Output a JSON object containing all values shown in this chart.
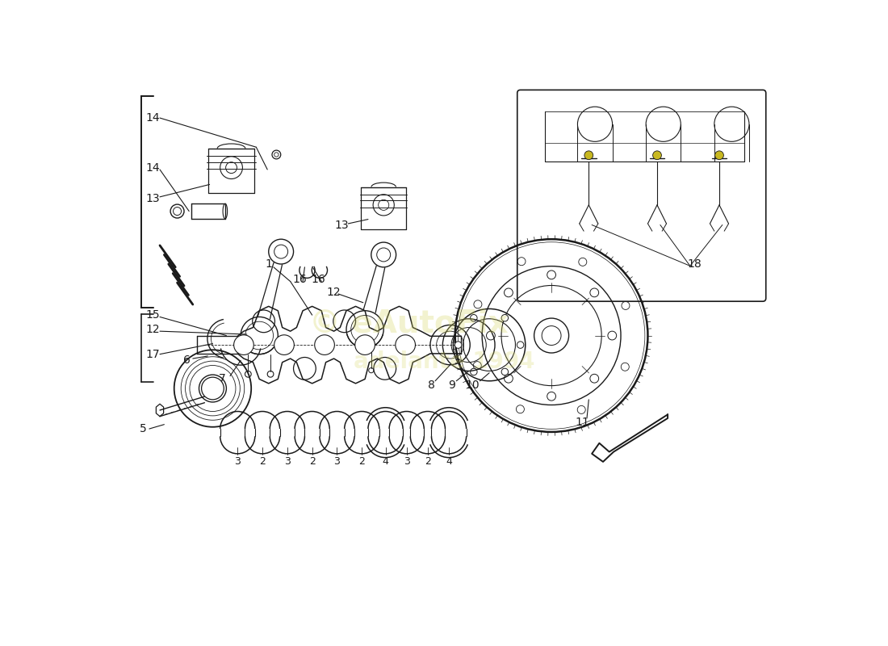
{
  "bg_color": "#ffffff",
  "line_color": "#1a1a1a",
  "watermark1": "adelante",
  "watermark2": "1994",
  "wm_color": "#d4d460",
  "wm_alpha": 0.3,
  "figsize": [
    11.0,
    8.0
  ],
  "dpi": 100
}
